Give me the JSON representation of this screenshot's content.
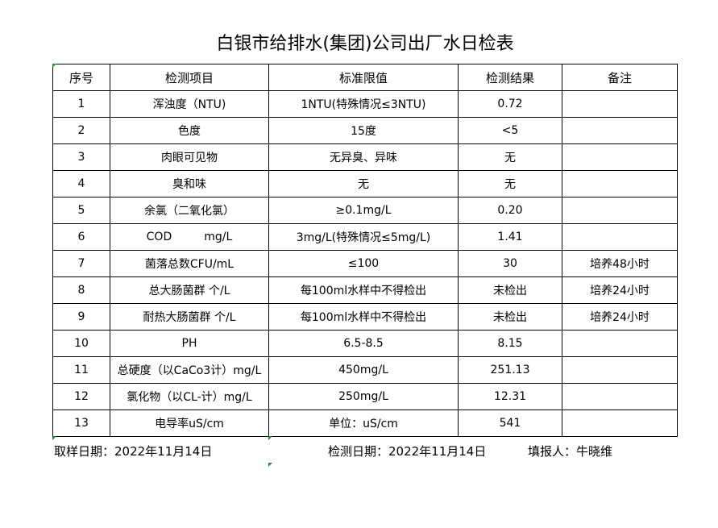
{
  "title": "白银市给排水(集团)公司出厂水日检表",
  "headers": [
    "序号",
    "检测项目",
    "标准限值",
    "检测结果",
    "备注"
  ],
  "rows": [
    [
      "1",
      "浑浊度（NTU)",
      "1NTU(特殊情况≤3NTU)",
      "0.72",
      ""
    ],
    [
      "2",
      "色度",
      "15度",
      "<5",
      ""
    ],
    [
      "3",
      "肉眼可见物",
      "无异臭、异味",
      "无",
      ""
    ],
    [
      "4",
      "臭和味",
      "无",
      "无",
      ""
    ],
    [
      "5",
      "余氯（二氧化氯）",
      "≥0.1mg/L",
      "0.20",
      ""
    ],
    [
      "6",
      "COD         mg/L",
      "3mg/L(特殊情况≤5mg/L)",
      "1.41",
      ""
    ],
    [
      "7",
      "菌落总数CFU/mL",
      "≤100",
      "30",
      "培养48小时"
    ],
    [
      "8",
      "总大肠菌群 个/L",
      "每100ml水样中不得检出",
      "未检出",
      "培养24小时"
    ],
    [
      "9",
      "耐热大肠菌群 个/L",
      "每100ml水样中不得检出",
      "未检出",
      "培养24小时"
    ],
    [
      "10",
      "PH",
      "6.5-8.5",
      "8.15",
      ""
    ],
    [
      "11",
      "总硬度（以CaCo3计）mg/L",
      "450mg/L",
      "251.13",
      ""
    ],
    [
      "12",
      "氯化物（以CL-计）mg/L",
      "250mg/L",
      "12.31",
      ""
    ],
    [
      "13",
      "电导率uS/cm",
      "单位：uS/cm",
      "541",
      ""
    ]
  ],
  "footer": {
    "sample_date": "取样日期：2022年11月14日",
    "test_date": "检测日期：2022年11月14日",
    "reporter": "填报人：牛晓维"
  },
  "colors": {
    "cell_marker": "#1f8a3a",
    "border": "#000000"
  }
}
